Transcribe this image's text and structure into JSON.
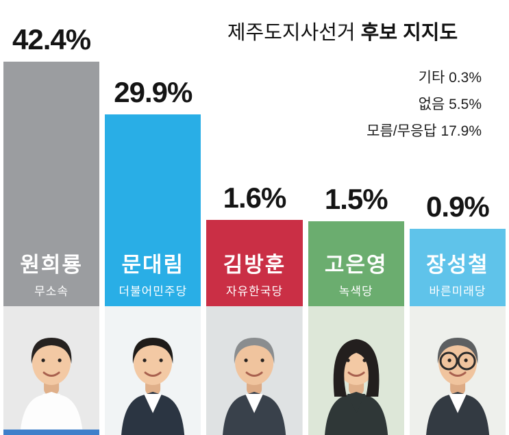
{
  "title": {
    "regular": "제주도지사선거",
    "bold": "후보 지지도"
  },
  "side_stats": [
    {
      "label": "기타",
      "value": "0.3%"
    },
    {
      "label": "없음",
      "value": "5.5%"
    },
    {
      "label": "모름/무응답",
      "value": "17.9%"
    }
  ],
  "candidates": [
    {
      "name": "원희룡",
      "party": "무소속",
      "value": 42.4,
      "value_label": "42.4%",
      "color": "#9b9da0",
      "photo": {
        "bg": "#e9e9e9",
        "suit": "#fdfdfd",
        "shirt": "#fdfdfd",
        "skin": "#f3c9a4",
        "skin2": "#e0b08a",
        "hair": "#262220",
        "glasses": false,
        "female": false,
        "strip": "#3f7fca"
      }
    },
    {
      "name": "문대림",
      "party": "더불어민주당",
      "value": 29.9,
      "value_label": "29.9%",
      "color": "#29aee6",
      "photo": {
        "bg": "#f1f4f5",
        "suit": "#2b3542",
        "shirt": "#ffffff",
        "skin": "#f3c9a4",
        "skin2": "#e0b08a",
        "hair": "#1e1b19",
        "glasses": false,
        "female": false
      }
    },
    {
      "name": "김방훈",
      "party": "자유한국당",
      "value": 1.6,
      "value_label": "1.6%",
      "color": "#ca2f45",
      "photo": {
        "bg": "#dfe2e3",
        "suit": "#39414b",
        "shirt": "#ffffff",
        "skin": "#f0c49e",
        "skin2": "#ddab85",
        "hair": "#8a8d8f",
        "glasses": false,
        "female": false
      }
    },
    {
      "name": "고은영",
      "party": "녹색당",
      "value": 1.5,
      "value_label": "1.5%",
      "color": "#6bad6f",
      "photo": {
        "bg": "#dde7d8",
        "suit": "#2f3737",
        "shirt": "#2f3737",
        "skin": "#f3c9a4",
        "skin2": "#e0b08a",
        "hair": "#231f1e",
        "glasses": false,
        "female": true
      }
    },
    {
      "name": "장성철",
      "party": "바른미래당",
      "value": 0.9,
      "value_label": "0.9%",
      "color": "#5fc3ea",
      "photo": {
        "bg": "#eef0ec",
        "suit": "#333a42",
        "shirt": "#ffffff",
        "skin": "#f0c49e",
        "skin2": "#ddab85",
        "hair": "#5c5f61",
        "glasses": true,
        "female": false
      }
    }
  ],
  "chart_data": {
    "type": "bar",
    "title": "제주도지사선거 후보 지지도",
    "categories": [
      "원희룡",
      "문대림",
      "김방훈",
      "고은영",
      "장성철"
    ],
    "values": [
      42.4,
      29.9,
      1.6,
      1.5,
      0.9
    ],
    "category_parties": [
      "무소속",
      "더불어민주당",
      "자유한국당",
      "녹색당",
      "바른미래당"
    ],
    "bar_colors": [
      "#9b9da0",
      "#29aee6",
      "#ca2f45",
      "#6bad6f",
      "#5fc3ea"
    ],
    "unit": "%",
    "value_labels": "above-bars",
    "annotations": [
      {
        "label": "기타",
        "value": 0.3
      },
      {
        "label": "없음",
        "value": 5.5
      },
      {
        "label": "모름/무응답",
        "value": 17.9
      }
    ],
    "ylim": [
      0,
      45
    ],
    "grid": false,
    "legend": false
  }
}
